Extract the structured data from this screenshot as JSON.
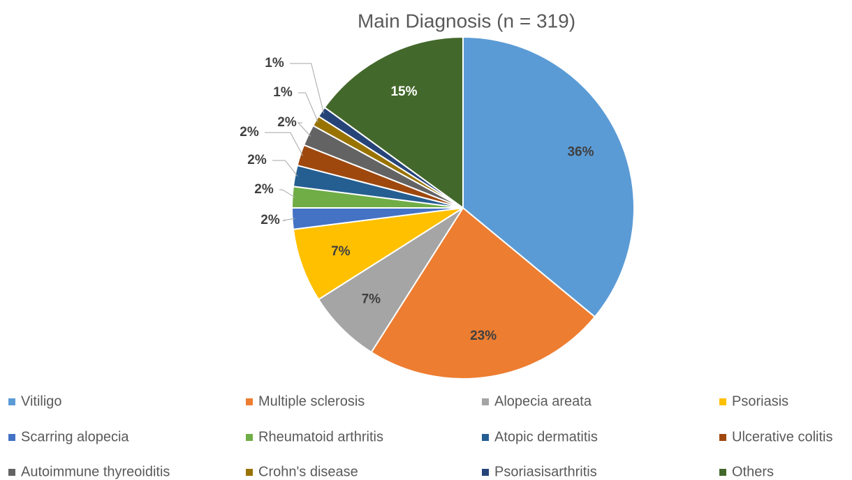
{
  "chart_data": {
    "type": "pie",
    "title": "Main Diagnosis (n = 319)",
    "categories": [
      "Vitiligo",
      "Multiple sclerosis",
      "Alopecia areata",
      "Psoriasis",
      "Scarring alopecia",
      "Rheumatoid arthritis",
      "Atopic dermatitis",
      "Ulcerative colitis",
      "Autoimmune thyreoiditis",
      "Crohn's disease",
      "Psoriasisarthritis",
      "Others"
    ],
    "values": [
      36,
      23,
      7,
      7,
      2,
      2,
      2,
      2,
      2,
      1,
      1,
      15
    ],
    "value_labels": [
      "36%",
      "23%",
      "7%",
      "7%",
      "2%",
      "2%",
      "2%",
      "2%",
      "2%",
      "1%",
      "1%",
      "15%"
    ],
    "colors": [
      "#5b9bd5",
      "#ed7d31",
      "#a5a5a5",
      "#ffc000",
      "#4472c4",
      "#70ad47",
      "#255e91",
      "#9e480e",
      "#636363",
      "#997300",
      "#264478",
      "#43682b"
    ],
    "legend": "bottom"
  }
}
